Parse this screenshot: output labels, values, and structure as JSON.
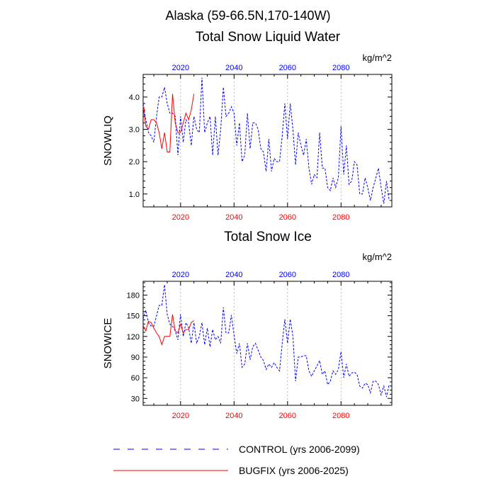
{
  "header": {
    "title": "Alaska (59-66.5N,170-140W)"
  },
  "legend": {
    "control_label": "CONTROL (yrs 2006-2099)",
    "bugfix_label": "BUGFIX (yrs 2006-2025)"
  },
  "colors": {
    "control": "#0000ff",
    "bugfix": "#ff0000",
    "top_axis": "#0000ff",
    "bottom_axis": "#ff0000",
    "grid": "#aaaaaa"
  },
  "chart_data": [
    {
      "type": "line",
      "title": "Total Snow Liquid Water",
      "units": "kg/m^2",
      "ylabel": "SNOWLIQ",
      "xlim": [
        2006,
        2099
      ],
      "ylim": [
        0.6,
        4.7
      ],
      "yticks": [
        1.0,
        2.0,
        3.0,
        4.0
      ],
      "ytick_labels": [
        "1.0",
        "2.0",
        "3.0",
        "4.0"
      ],
      "xticks": [
        2020,
        2040,
        2060,
        2080
      ],
      "top_tick_labels": [
        "2020",
        "2040",
        "2060",
        "2080"
      ],
      "bottom_tick_labels": [
        "2020",
        "2040",
        "2060",
        "2080"
      ],
      "grid": "vertical dashed at 2020, 2040, 2060, 2080",
      "series": [
        {
          "name": "CONTROL (yrs 2006-2099)",
          "style": "dashed",
          "x_start": 2006,
          "values": [
            3.8,
            3.3,
            2.9,
            2.8,
            2.6,
            3.4,
            4.0,
            4.0,
            4.3,
            3.8,
            3.5,
            3.5,
            3.4,
            2.2,
            3.4,
            2.6,
            3.3,
            3.2,
            2.5,
            3.4,
            3.0,
            2.9,
            4.6,
            2.9,
            3.2,
            3.4,
            2.2,
            3.4,
            2.2,
            3.0,
            4.3,
            3.4,
            3.5,
            3.7,
            3.5,
            2.5,
            3.2,
            2.0,
            2.2,
            3.5,
            2.4,
            3.2,
            3.2,
            3.0,
            2.4,
            2.3,
            1.7,
            2.7,
            1.7,
            2.1,
            2.0,
            2.0,
            2.8,
            3.8,
            2.7,
            3.8,
            3.0,
            1.9,
            2.9,
            2.5,
            2.2,
            2.7,
            1.8,
            1.3,
            1.6,
            1.5,
            2.9,
            1.8,
            1.8,
            1.2,
            1.1,
            1.5,
            1.2,
            1.5,
            3.1,
            1.6,
            2.5,
            1.3,
            1.4,
            2.0,
            1.9,
            1.0,
            1.0,
            1.5,
            1.2,
            0.8,
            1.2,
            1.5,
            1.8,
            1.2,
            0.7,
            1.4,
            0.8
          ]
        },
        {
          "name": "BUGFIX (yrs 2006-2025)",
          "style": "solid",
          "x_start": 2006,
          "values": [
            3.7,
            3.1,
            3.0,
            3.3,
            3.3,
            3.2,
            2.9,
            2.4,
            2.9,
            2.3,
            2.3,
            4.1,
            3.2,
            2.9,
            2.9,
            3.2,
            3.5,
            3.3,
            3.6,
            4.1
          ]
        }
      ]
    },
    {
      "type": "line",
      "title": "Total Snow Ice",
      "units": "kg/m^2",
      "ylabel": "SNOWICE",
      "xlim": [
        2006,
        2099
      ],
      "ylim": [
        20,
        200
      ],
      "yticks": [
        30,
        60,
        90,
        120,
        150,
        180
      ],
      "ytick_labels": [
        "30",
        "60",
        "90",
        "120",
        "150",
        "180"
      ],
      "xticks": [
        2020,
        2040,
        2060,
        2080
      ],
      "top_tick_labels": [
        "2020",
        "2040",
        "2060",
        "2080"
      ],
      "bottom_tick_labels": [
        "2020",
        "2040",
        "2060",
        "2080"
      ],
      "grid": "vertical dashed at 2020, 2040, 2060, 2080",
      "series": [
        {
          "name": "CONTROL (yrs 2006-2099)",
          "style": "dashed",
          "x_start": 2006,
          "values": [
            145,
            158,
            140,
            135,
            135,
            150,
            165,
            165,
            195,
            152,
            138,
            135,
            128,
            115,
            152,
            120,
            140,
            133,
            110,
            140,
            110,
            120,
            140,
            108,
            132,
            105,
            130,
            115,
            120,
            110,
            162,
            125,
            125,
            151,
            122,
            95,
            110,
            75,
            80,
            110,
            86,
            105,
            110,
            100,
            90,
            85,
            72,
            80,
            75,
            82,
            75,
            70,
            110,
            145,
            110,
            145,
            120,
            55,
            90,
            90,
            92,
            92,
            70,
            62,
            70,
            77,
            85,
            65,
            70,
            50,
            55,
            70,
            65,
            72,
            98,
            60,
            80,
            62,
            67,
            68,
            65,
            48,
            45,
            52,
            50,
            38,
            55,
            55,
            50,
            35,
            48,
            32,
            50
          ]
        },
        {
          "name": "BUGFIX (yrs 2006-2025)",
          "style": "solid",
          "x_start": 2006,
          "values": [
            136,
            128,
            142,
            140,
            132,
            125,
            120,
            108,
            120,
            120,
            120,
            152,
            128,
            125,
            138,
            125,
            130,
            130,
            140,
            143
          ]
        }
      ]
    }
  ]
}
